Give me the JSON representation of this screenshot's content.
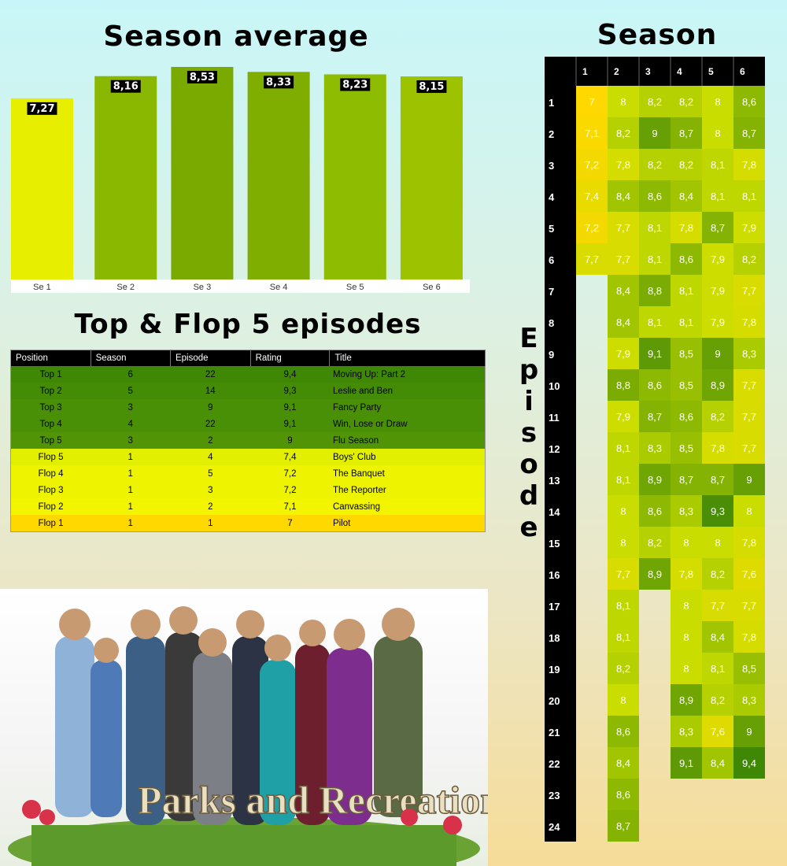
{
  "titles": {
    "bar": "Season average",
    "top_flop": "Top & Flop 5 episodes",
    "heatmap": "Season",
    "episode_axis": "Episode"
  },
  "chart_data": [
    {
      "type": "bar",
      "title": "Season average",
      "categories": [
        "Se 1",
        "Se 2",
        "Se 3",
        "Se 4",
        "Se 5",
        "Se 6"
      ],
      "values": [
        7.27,
        8.16,
        8.53,
        8.33,
        8.23,
        8.15
      ],
      "value_labels": [
        "7,27",
        "8,16",
        "8,53",
        "8,33",
        "8,23",
        "8,15"
      ],
      "colors": [
        "#e8ee00",
        "#8ab800",
        "#7aaa00",
        "#7fae00",
        "#8ebc00",
        "#9cc200"
      ],
      "ylim": [
        0,
        8.53
      ],
      "grid": false
    },
    {
      "type": "table",
      "title": "Top & Flop 5 episodes",
      "columns": [
        "Position",
        "Season",
        "Episode",
        "Rating",
        "Title"
      ],
      "rows": [
        {
          "position": "Top 1",
          "season": "6",
          "episode": "22",
          "rating": "9,4",
          "title": "Moving Up: Part 2",
          "color": "#3f8806"
        },
        {
          "position": "Top 2",
          "season": "5",
          "episode": "14",
          "rating": "9,3",
          "title": "Leslie and Ben",
          "color": "#448c06"
        },
        {
          "position": "Top 3",
          "season": "3",
          "episode": "9",
          "rating": "9,1",
          "title": "Fancy Party",
          "color": "#4a9006"
        },
        {
          "position": "Top 4",
          "season": "4",
          "episode": "22",
          "rating": "9,1",
          "title": "Win, Lose or Draw",
          "color": "#4a9006"
        },
        {
          "position": "Top 5",
          "season": "3",
          "episode": "2",
          "rating": "9",
          "title": "Flu Season",
          "color": "#519406"
        },
        {
          "position": "Flop 5",
          "season": "1",
          "episode": "4",
          "rating": "7,4",
          "title": "Boys' Club",
          "color": "#e2ef00"
        },
        {
          "position": "Flop 4",
          "season": "1",
          "episode": "5",
          "rating": "7,2",
          "title": "The Banquet",
          "color": "#eef400"
        },
        {
          "position": "Flop 3",
          "season": "1",
          "episode": "3",
          "rating": "7,2",
          "title": "The Reporter",
          "color": "#eef400"
        },
        {
          "position": "Flop 2",
          "season": "1",
          "episode": "2",
          "rating": "7,1",
          "title": "Canvassing",
          "color": "#f2f400"
        },
        {
          "position": "Flop 1",
          "season": "1",
          "episode": "1",
          "rating": "7",
          "title": "Pilot",
          "color": "#ffd800"
        }
      ]
    },
    {
      "type": "heatmap",
      "title": "Season",
      "ylabel": "Episode",
      "seasons": [
        "1",
        "2",
        "3",
        "4",
        "5",
        "6"
      ],
      "episodes": [
        "1",
        "2",
        "3",
        "4",
        "5",
        "6",
        "7",
        "8",
        "9",
        "10",
        "11",
        "12",
        "13",
        "14",
        "15",
        "16",
        "17",
        "18",
        "19",
        "20",
        "21",
        "22",
        "23",
        "24"
      ],
      "values": [
        [
          7.0,
          7.1,
          7.2,
          7.4,
          7.2,
          7.7
        ],
        [
          8.0,
          8.2,
          7.8,
          8.4,
          7.7,
          7.7,
          8.4,
          8.4,
          7.9,
          8.8,
          7.9,
          8.1,
          8.1,
          8.0,
          8.0,
          7.7,
          8.1,
          8.1,
          8.2,
          8.0,
          8.6,
          8.4,
          8.6,
          8.7
        ],
        [
          8.2,
          9.0,
          8.2,
          8.6,
          8.1,
          8.1,
          8.8,
          8.1,
          9.1,
          8.6,
          8.7,
          8.3,
          8.9,
          8.6,
          8.2,
          8.9
        ],
        [
          8.2,
          8.7,
          8.2,
          8.4,
          7.8,
          8.6,
          8.1,
          8.1,
          8.5,
          8.5,
          8.6,
          8.5,
          8.7,
          8.3,
          8.0,
          7.8,
          8.0,
          8.0,
          8.0,
          8.9,
          8.3,
          9.1
        ],
        [
          8.0,
          8.0,
          8.1,
          8.1,
          8.7,
          7.9,
          7.9,
          7.9,
          9.0,
          8.9,
          8.2,
          7.8,
          8.7,
          9.3,
          8.0,
          8.2,
          7.7,
          8.4,
          8.1,
          8.2,
          7.6,
          8.4
        ],
        [
          8.6,
          8.7,
          7.8,
          8.1,
          7.9,
          8.2,
          7.7,
          7.8,
          8.3,
          7.7,
          7.7,
          7.7,
          9.0,
          8.0,
          7.8,
          7.6,
          7.7,
          7.8,
          8.5,
          8.3,
          9.0,
          9.4
        ]
      ],
      "labels": [
        [
          "7",
          "7,1",
          "7,2",
          "7,4",
          "7,2",
          "7,7"
        ],
        [
          "8",
          "8,2",
          "7,8",
          "8,4",
          "7,7",
          "7,7",
          "8,4",
          "8,4",
          "7,9",
          "8,8",
          "7,9",
          "8,1",
          "8,1",
          "8",
          "8",
          "7,7",
          "8,1",
          "8,1",
          "8,2",
          "8",
          "8,6",
          "8,4",
          "8,6",
          "8,7"
        ],
        [
          "8,2",
          "9",
          "8,2",
          "8,6",
          "8,1",
          "8,1",
          "8,8",
          "8,1",
          "9,1",
          "8,6",
          "8,7",
          "8,3",
          "8,9",
          "8,6",
          "8,2",
          "8,9"
        ],
        [
          "8,2",
          "8,7",
          "8,2",
          "8,4",
          "7,8",
          "8,6",
          "8,1",
          "8,1",
          "8,5",
          "8,5",
          "8,6",
          "8,5",
          "8,7",
          "8,3",
          "8",
          "7,8",
          "8",
          "8",
          "8",
          "8,9",
          "8,3",
          "9,1"
        ],
        [
          "8",
          "8",
          "8,1",
          "8,1",
          "8,7",
          "7,9",
          "7,9",
          "7,9",
          "9",
          "8,9",
          "8,2",
          "7,8",
          "8,7",
          "9,3",
          "8",
          "8,2",
          "7,7",
          "8,4",
          "8,1",
          "8,2",
          "7,6",
          "8,4"
        ],
        [
          "8,6",
          "8,7",
          "7,8",
          "8,1",
          "7,9",
          "8,2",
          "7,7",
          "7,8",
          "8,3",
          "7,7",
          "7,7",
          "7,7",
          "9",
          "8",
          "7,8",
          "7,6",
          "7,7",
          "7,8",
          "8,5",
          "8,3",
          "9",
          "9,4"
        ]
      ],
      "color_scale": {
        "low": "#ffd800",
        "mid": "#c9dd00",
        "high": "#3f8806"
      }
    }
  ],
  "poster": {
    "logo_text": "Parks and Recreation"
  }
}
